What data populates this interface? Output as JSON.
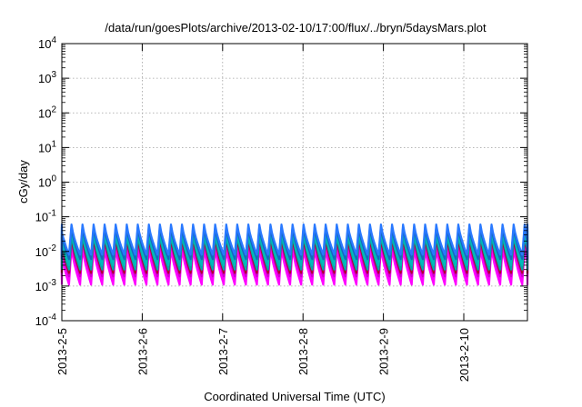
{
  "chart_data": {
    "type": "line",
    "title": "/data/run/goesPlots/archive/2013-02-10/17:00/flux/../bryn/5daysMars.plot",
    "xlabel": "Coordinated Universal Time (UTC)",
    "ylabel": "cGy/day",
    "yscale": "log",
    "xlim": [
      "2013-02-05T00:00",
      "2013-02-10T19:00"
    ],
    "ylim": [
      0.0001,
      10000
    ],
    "grid": true,
    "x_ticks": [
      {
        "x": "2013-02-05T00:00",
        "label": "2013-2-5"
      },
      {
        "x": "2013-02-06T00:00",
        "label": "2013-2-6"
      },
      {
        "x": "2013-02-07T00:00",
        "label": "2013-2-7"
      },
      {
        "x": "2013-02-08T00:00",
        "label": "2013-2-8"
      },
      {
        "x": "2013-02-09T00:00",
        "label": "2013-2-9"
      },
      {
        "x": "2013-02-10T00:00",
        "label": "2013-2-10"
      }
    ],
    "y_ticks": [
      {
        "y": 0.0001,
        "base": "10",
        "exp": "-4"
      },
      {
        "y": 0.001,
        "base": "10",
        "exp": "-3"
      },
      {
        "y": 0.01,
        "base": "10",
        "exp": "-2"
      },
      {
        "y": 0.1,
        "base": "10",
        "exp": "-1"
      },
      {
        "y": 1,
        "base": "10",
        "exp": "0"
      },
      {
        "y": 10,
        "base": "10",
        "exp": "1"
      },
      {
        "y": 100,
        "base": "10",
        "exp": "2"
      },
      {
        "y": 1000,
        "base": "10",
        "exp": "3"
      },
      {
        "y": 10000,
        "base": "10",
        "exp": "4"
      }
    ],
    "oscillation_period_hours": 3.3,
    "series": [
      {
        "color": "#ff00ff",
        "peak": 0.013,
        "trough": 0.0011
      },
      {
        "color": "#ff00ff",
        "peak": 0.017,
        "trough": 0.0015
      },
      {
        "color": "#d000d0",
        "peak": 0.021,
        "trough": 0.0019
      },
      {
        "color": "#b00030",
        "peak": 0.026,
        "trough": 0.0024
      },
      {
        "color": "#00aaaa",
        "peak": 0.032,
        "trough": 0.003
      },
      {
        "color": "#00bbbb",
        "peak": 0.04,
        "trough": 0.004
      },
      {
        "color": "#1565c0",
        "peak": 0.05,
        "trough": 0.006
      },
      {
        "color": "#2979ff",
        "peak": 0.06,
        "trough": 0.008
      }
    ]
  }
}
